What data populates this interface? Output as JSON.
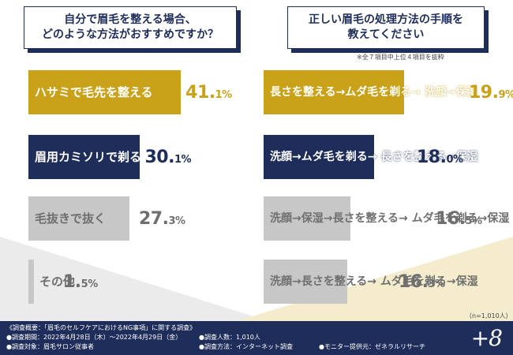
{
  "theme": {
    "navy": "#1e2d5a",
    "gold": "#c9a21a",
    "gray": "#c7c7c7",
    "gray_text": "#6f6f6f",
    "cream": "#f4eccd"
  },
  "questions": {
    "left": "自分で眉毛を整える場合、\nどのような方法がおすすめですか？",
    "right": "正しい眉毛の処理方法の手順を\n教えてください"
  },
  "note_top": "※全７項目中上位４項目を抜粋",
  "sample_size": "（n=1,010人）",
  "chart_data": [
    {
      "type": "bar",
      "title": "自分で眉毛を整える場合、どのような方法がおすすめですか？",
      "categories": [
        "ハサミで毛先を整える",
        "眉用カミソリで剃る",
        "毛抜きで抜く",
        "その他"
      ],
      "values": [
        41.1,
        30.1,
        27.3,
        1.5
      ],
      "value_labels": [
        [
          "41.",
          "1%"
        ],
        [
          "30.",
          "1%"
        ],
        [
          "27.",
          "3%"
        ],
        [
          "1.",
          "5%"
        ]
      ],
      "styles": [
        "gold",
        "navy",
        "gray",
        "gray"
      ],
      "unit": "%"
    },
    {
      "type": "bar",
      "title": "正しい眉毛の処理方法の手順を教えてください",
      "categories": [
        "長さを整える→ムダ毛を剃る→\n洗顔→保湿",
        "洗顔→ムダ毛を剃る→\n長さを整える→保湿",
        "洗顔→保湿→長さを整える→\nムダ毛を剃る→保湿",
        "洗顔→長さを整える→\nムダ毛を剃る→保湿"
      ],
      "values": [
        19.9,
        18.0,
        16.5,
        16.3
      ],
      "value_labels": [
        [
          "19.",
          "9%"
        ],
        [
          "18.",
          "0%"
        ],
        [
          "16.",
          "5%"
        ],
        [
          "16.",
          "3%"
        ]
      ],
      "styles": [
        "gold",
        "navy",
        "gray",
        "gray"
      ],
      "unit": "%"
    }
  ],
  "footer": {
    "l1": "《調査概要：「眉毛のセルフケアにおけるNG事項」に関する調査》",
    "l2": "●調査期間：2022年4月28日（木）～2022年4月29日（金）",
    "l3": "●調査対象：眉毛サロン従事者",
    "m1": "●調査人数：1,010人",
    "m2": "●調査方法：インターネット調査",
    "r1": "●モニター提供元：ゼネラルリサーチ",
    "logo": "+8"
  }
}
